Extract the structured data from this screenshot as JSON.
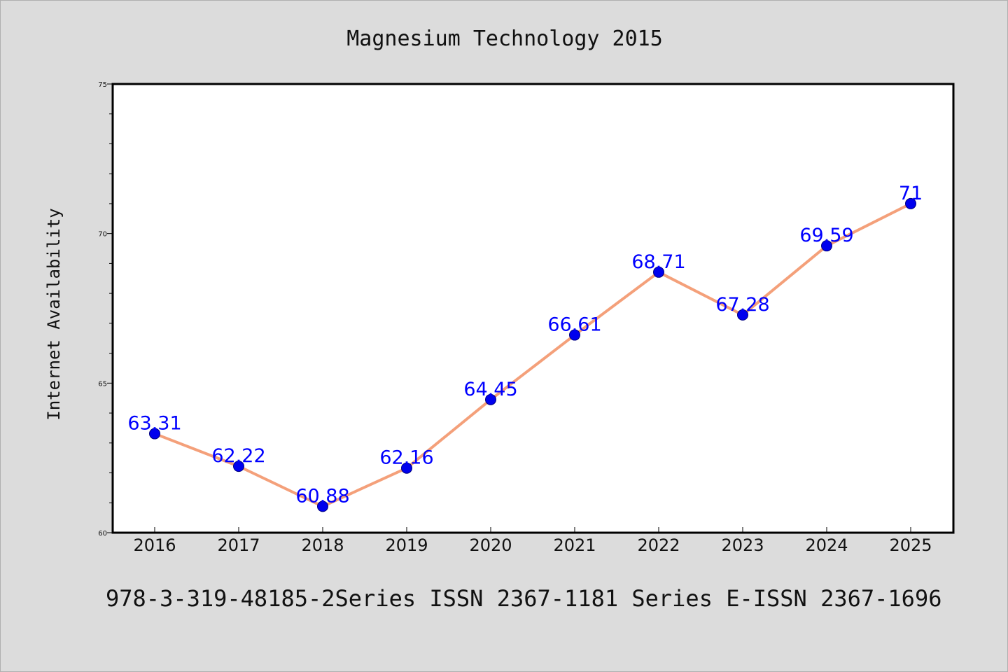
{
  "chart_data": {
    "type": "line",
    "title": "Magnesium Technology 2015",
    "ylabel": "Internet Availability",
    "xlabel": "",
    "categories": [
      "2016",
      "2017",
      "2018",
      "2019",
      "2020",
      "2021",
      "2022",
      "2023",
      "2024",
      "2025"
    ],
    "series": [
      {
        "values": [
          63.31,
          62.22,
          60.88,
          62.16,
          64.45,
          66.61,
          68.71,
          67.28,
          69.59,
          71
        ],
        "data_labels": [
          "63.31",
          "62.22",
          "60.88",
          "62.16",
          "64.45",
          "66.61",
          "68.71",
          "67.28",
          "69.59",
          "71"
        ]
      }
    ],
    "ylim": [
      60,
      75
    ],
    "y_major_ticks": [
      60,
      65,
      70,
      75
    ],
    "y_minor_step": 1,
    "grid": false,
    "line_color": "#f4a07a",
    "marker_color": "#0000ee",
    "label_color": "#0000ff"
  },
  "footer": {
    "text": "978-3-319-48185-2Series ISSN 2367-1181 Series E-ISSN 2367-1696"
  }
}
